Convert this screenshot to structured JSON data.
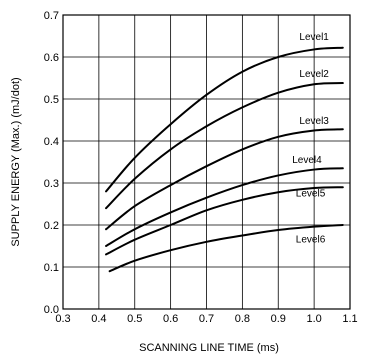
{
  "chart_data": {
    "type": "line",
    "xlabel": "SCANNING LINE TIME (ms)",
    "ylabel": "SUPPLY ENERGY (Max.) (mJ/dot)",
    "xlim": [
      0.3,
      1.1
    ],
    "ylim": [
      0.0,
      0.7
    ],
    "x_ticks": [
      0.3,
      0.4,
      0.5,
      0.6,
      0.7,
      0.8,
      0.9,
      1.0,
      1.1
    ],
    "y_ticks": [
      0.0,
      0.1,
      0.2,
      0.3,
      0.4,
      0.5,
      0.6,
      0.7
    ],
    "x_tick_labels": [
      "0.3",
      "0.4",
      "0.5",
      "0.6",
      "0.7",
      "0.8",
      "0.9",
      "1.0",
      "1.1"
    ],
    "y_tick_labels": [
      "0.0",
      "0.1",
      "0.2",
      "0.3",
      "0.4",
      "0.5",
      "0.6",
      "0.7"
    ],
    "grid": true,
    "series": [
      {
        "name": "Level1",
        "x": [
          0.42,
          0.5,
          0.6,
          0.7,
          0.8,
          0.9,
          1.0,
          1.08
        ],
        "y": [
          0.28,
          0.36,
          0.44,
          0.51,
          0.565,
          0.6,
          0.618,
          0.622
        ]
      },
      {
        "name": "Level2",
        "x": [
          0.42,
          0.5,
          0.6,
          0.7,
          0.8,
          0.9,
          1.0,
          1.08
        ],
        "y": [
          0.24,
          0.31,
          0.38,
          0.435,
          0.48,
          0.515,
          0.535,
          0.538
        ]
      },
      {
        "name": "Level3",
        "x": [
          0.42,
          0.5,
          0.6,
          0.7,
          0.8,
          0.9,
          1.0,
          1.08
        ],
        "y": [
          0.19,
          0.245,
          0.295,
          0.34,
          0.38,
          0.41,
          0.425,
          0.428
        ]
      },
      {
        "name": "Level4",
        "x": [
          0.42,
          0.5,
          0.6,
          0.7,
          0.8,
          0.9,
          1.0,
          1.08
        ],
        "y": [
          0.15,
          0.19,
          0.23,
          0.265,
          0.295,
          0.318,
          0.332,
          0.335
        ]
      },
      {
        "name": "Level5",
        "x": [
          0.42,
          0.5,
          0.6,
          0.7,
          0.8,
          0.9,
          1.0,
          1.08
        ],
        "y": [
          0.13,
          0.165,
          0.2,
          0.235,
          0.26,
          0.278,
          0.288,
          0.29
        ]
      },
      {
        "name": "Level6",
        "x": [
          0.43,
          0.5,
          0.6,
          0.7,
          0.8,
          0.9,
          1.0,
          1.08
        ],
        "y": [
          0.09,
          0.115,
          0.14,
          0.16,
          0.175,
          0.188,
          0.196,
          0.2
        ]
      }
    ]
  }
}
